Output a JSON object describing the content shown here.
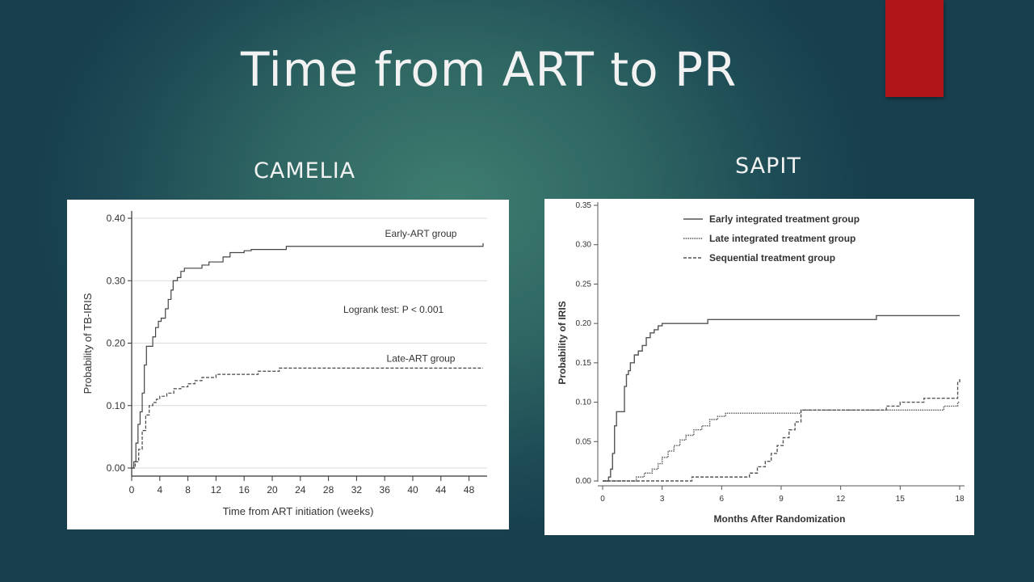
{
  "slide": {
    "title": "Time from ART to PR",
    "left_label": "CAMELIA",
    "right_label": "SAPIT",
    "accent_color": "#b0151a"
  },
  "chart_data": [
    {
      "type": "line",
      "step": true,
      "xlabel": "Time from ART initiation (weeks)",
      "ylabel": "Probability of TB-IRIS",
      "xlim": [
        0,
        50
      ],
      "ylim": [
        0,
        0.4
      ],
      "xticks": [
        0,
        4,
        8,
        12,
        16,
        20,
        24,
        28,
        32,
        36,
        40,
        44,
        48
      ],
      "yticks": [
        "0.00",
        "0.10",
        "0.20",
        "0.30",
        "0.40"
      ],
      "grid": true,
      "annotation": "Logrank test: P < 0.001",
      "series": [
        {
          "name": "Early-ART group",
          "style": "solid",
          "x": [
            0,
            0.3,
            0.6,
            0.9,
            1.2,
            1.5,
            1.8,
            2.1,
            2.5,
            3,
            3.4,
            3.8,
            4.2,
            4.8,
            5.2,
            5.6,
            5.9,
            6.5,
            7,
            7.5,
            8.5,
            10,
            11,
            13,
            14,
            16,
            17,
            20,
            22,
            50
          ],
          "y": [
            0,
            0.01,
            0.04,
            0.07,
            0.09,
            0.12,
            0.165,
            0.195,
            0.195,
            0.21,
            0.225,
            0.235,
            0.24,
            0.255,
            0.27,
            0.285,
            0.3,
            0.305,
            0.315,
            0.32,
            0.32,
            0.325,
            0.33,
            0.338,
            0.345,
            0.348,
            0.35,
            0.35,
            0.355,
            0.36
          ]
        },
        {
          "name": "Late-ART group",
          "style": "dashed",
          "x": [
            0,
            0.5,
            1,
            1.5,
            2,
            2.5,
            3,
            3.5,
            4,
            5,
            6,
            7,
            8,
            9,
            10,
            12,
            14,
            18,
            21,
            50
          ],
          "y": [
            0,
            0.01,
            0.03,
            0.06,
            0.085,
            0.1,
            0.105,
            0.11,
            0.115,
            0.12,
            0.127,
            0.13,
            0.135,
            0.14,
            0.145,
            0.15,
            0.15,
            0.155,
            0.16,
            0.16
          ]
        }
      ]
    },
    {
      "type": "line",
      "step": true,
      "xlabel": "Months After Randomization",
      "ylabel": "Probability of IRIS",
      "xlim": [
        0,
        18
      ],
      "ylim": [
        0,
        0.35
      ],
      "xticks": [
        0,
        3,
        6,
        9,
        12,
        15,
        18
      ],
      "yticks": [
        "0.00",
        "0.05",
        "0.10",
        "0.15",
        "0.20",
        "0.25",
        "0.30",
        "0.35"
      ],
      "grid": false,
      "legend_position": "top-left",
      "series": [
        {
          "name": "Early integrated treatment group",
          "style": "solid",
          "x": [
            0,
            0.3,
            0.4,
            0.5,
            0.6,
            0.7,
            0.9,
            1.1,
            1.2,
            1.3,
            1.4,
            1.6,
            1.8,
            2,
            2.2,
            2.4,
            2.6,
            2.8,
            3,
            3.4,
            5.3,
            13.8,
            18
          ],
          "y": [
            0,
            0.005,
            0.015,
            0.035,
            0.07,
            0.088,
            0.088,
            0.12,
            0.135,
            0.14,
            0.15,
            0.16,
            0.165,
            0.172,
            0.182,
            0.188,
            0.192,
            0.197,
            0.2,
            0.2,
            0.205,
            0.21,
            0.21
          ]
        },
        {
          "name": "Late integrated treatment group",
          "style": "dotted",
          "x": [
            0,
            1.7,
            2.1,
            2.5,
            2.8,
            3,
            3.3,
            3.6,
            3.9,
            4.2,
            4.6,
            5,
            5.4,
            5.8,
            6.2,
            7,
            9,
            10,
            14.5,
            17.2,
            17.9,
            18
          ],
          "y": [
            0,
            0.005,
            0.01,
            0.015,
            0.022,
            0.03,
            0.038,
            0.045,
            0.052,
            0.058,
            0.065,
            0.07,
            0.078,
            0.082,
            0.086,
            0.086,
            0.086,
            0.09,
            0.09,
            0.095,
            0.1,
            0.1
          ]
        },
        {
          "name": "Sequential treatment group",
          "style": "dashed",
          "x": [
            0,
            4.5,
            7.4,
            7.8,
            8.2,
            8.5,
            8.8,
            9.1,
            9.4,
            9.7,
            10,
            14.3,
            15,
            16.2,
            17.9,
            18
          ],
          "y": [
            0,
            0.005,
            0.01,
            0.018,
            0.025,
            0.035,
            0.045,
            0.055,
            0.065,
            0.075,
            0.09,
            0.095,
            0.1,
            0.105,
            0.125,
            0.13
          ]
        }
      ]
    }
  ]
}
